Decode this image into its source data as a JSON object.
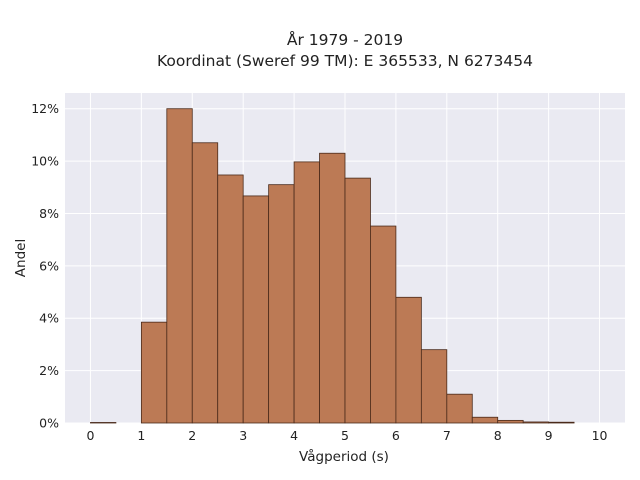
{
  "chart_data": {
    "type": "bar",
    "title_line1": "År 1979 - 2019",
    "title_line2": "Koordinat (Sweref 99 TM): E 365533, N 6273454",
    "xlabel": "Vågperiod (s)",
    "ylabel": "Andel",
    "bin_width": 0.5,
    "x_bin_starts": [
      0,
      0.5,
      1,
      1.5,
      2,
      2.5,
      3,
      3.5,
      4,
      4.5,
      5,
      5.5,
      6,
      6.5,
      7,
      7.5,
      8,
      8.5,
      9,
      9.5
    ],
    "values": [
      0.02,
      0.0,
      3.85,
      12.0,
      10.7,
      9.47,
      8.67,
      9.1,
      9.97,
      10.3,
      9.35,
      7.52,
      4.8,
      2.8,
      1.1,
      0.22,
      0.1,
      0.04,
      0.03,
      0.0
    ],
    "xlim": [
      -0.5,
      10.5
    ],
    "ylim": [
      0,
      12.6
    ],
    "x_ticks": [
      0,
      1,
      2,
      3,
      4,
      5,
      6,
      7,
      8,
      9,
      10
    ],
    "y_ticks": [
      0,
      2,
      4,
      6,
      8,
      10,
      12
    ],
    "y_tick_labels": [
      "0%",
      "2%",
      "4%",
      "6%",
      "8%",
      "10%",
      "12%"
    ],
    "grid": true,
    "colors": {
      "bar_fill": "#bc7a55",
      "bar_edge": "#4a2a1a",
      "plot_bg": "#eaeaf2",
      "grid": "#ffffff"
    }
  }
}
